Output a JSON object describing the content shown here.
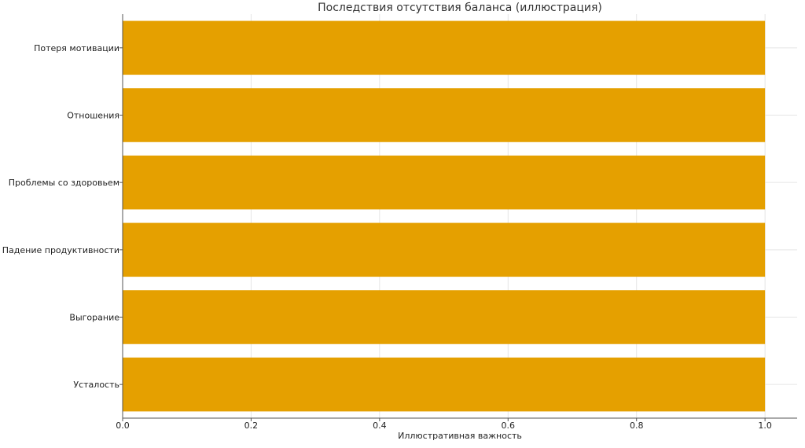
{
  "chart_data": {
    "type": "bar",
    "orientation": "horizontal",
    "title": "Последствия отсутствия баланса (иллюстрация)",
    "xlabel": "Иллюстративная важность",
    "ylabel": "",
    "categories": [
      "Усталость",
      "Выгорание",
      "Падение продуктивности",
      "Проблемы со здоровьем",
      "Отношения",
      "Потеря мотивации"
    ],
    "values": [
      1.0,
      1.0,
      1.0,
      1.0,
      1.0,
      1.0
    ],
    "xlim": [
      0,
      1.05
    ],
    "xticks": [
      "0.0",
      "0.2",
      "0.4",
      "0.6",
      "0.8",
      "1.0"
    ],
    "grid": true,
    "bar_color": "#E5A000",
    "axis_color": "#555555",
    "grid_color": "#E5E5E5"
  }
}
